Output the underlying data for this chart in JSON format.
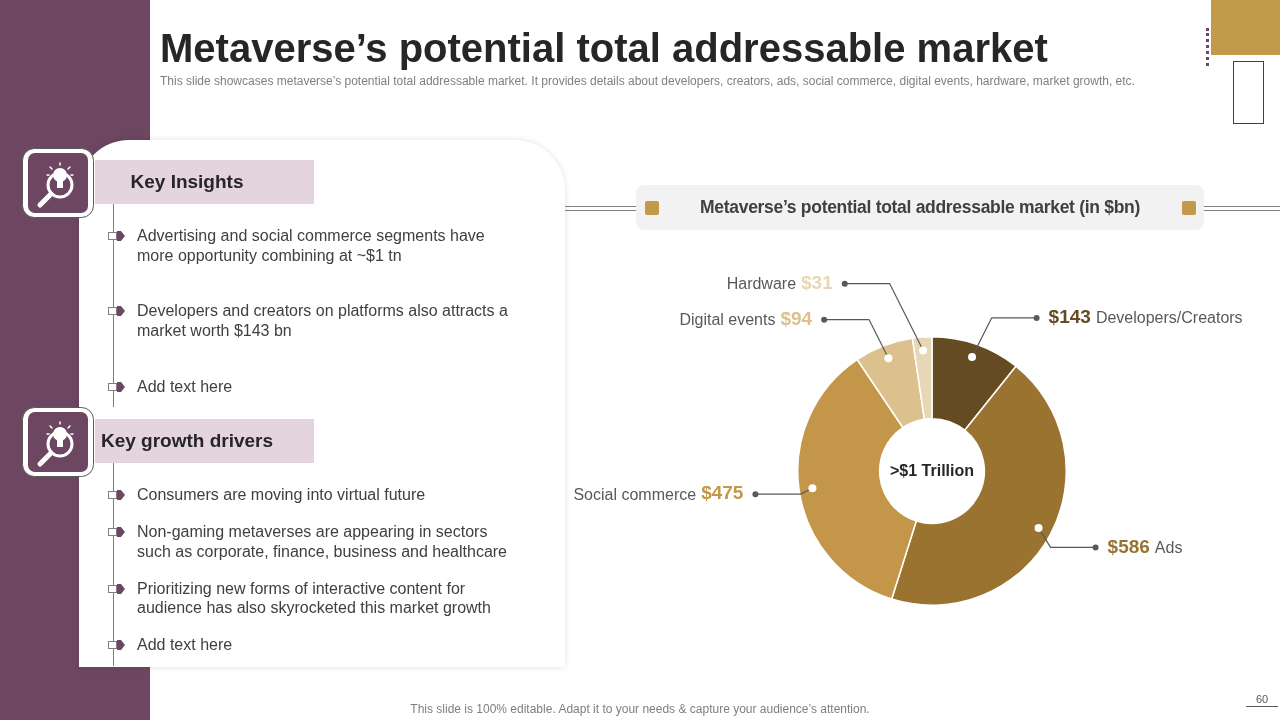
{
  "chart_data": [
    {
      "type": "other",
      "title": "Metaverse’s potential total addressable market",
      "subtitle": "This slide showcases metaverse’s potential total addressable market. It provides details about developers, creators, ads, social commerce, digital events, hardware, market growth, etc.",
      "annotations": [
        "This slide is 100% editable. Adapt it to your needs & capture your audience’s attention.",
        "60"
      ]
    },
    {
      "type": "other",
      "title": "Key Insights",
      "annotations": [
        "Advertising and social commerce segments have more opportunity combining at ~$1 tn",
        "Developers and creators on platforms also attracts a market worth $143 bn",
        "Add text here"
      ]
    },
    {
      "type": "other",
      "title": "Key growth drivers",
      "annotations": [
        "Consumers are moving into virtual future",
        "Non-gaming metaverses are appearing in sectors such as corporate, finance, business and healthcare",
        "Prioritizing new forms of interactive content for audience has also skyrocketed this market growth",
        "Add text here"
      ]
    },
    {
      "type": "donut",
      "title": "Metaverse’s potential total addressable market (in $bn)",
      "categories": [
        "Developers/Creators",
        "Ads",
        "Social commerce",
        "Digital events",
        "Hardware"
      ],
      "values": [
        143,
        586,
        475,
        94,
        31
      ],
      "colors": [
        "#654b22",
        "#9a7330",
        "#c3964a",
        "#dcc18f",
        "#e8d7b6"
      ],
      "value_labels": [
        "$143",
        "$586",
        "$475",
        "$94",
        "$31"
      ],
      "annotations": [
        ">$1 Trillion"
      ]
    }
  ]
}
